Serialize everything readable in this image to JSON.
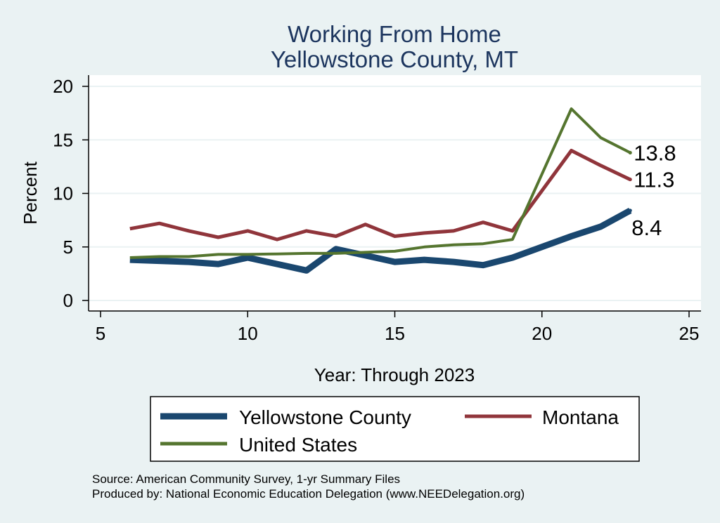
{
  "chart_data": {
    "type": "line",
    "title": [
      "Working From Home",
      "Yellowstone County, MT"
    ],
    "xlabel": "Year: Through 2023",
    "ylabel": "Percent",
    "xlim": [
      5,
      25
    ],
    "ylim": [
      0,
      20
    ],
    "xticks": [
      5,
      10,
      15,
      20,
      25
    ],
    "yticks": [
      0,
      5,
      10,
      15,
      20
    ],
    "grid": true,
    "legend_position": "bottom",
    "series": [
      {
        "name": "Yellowstone County",
        "color": "#1a476f",
        "x": [
          6,
          7,
          8,
          9,
          10,
          11,
          12,
          13,
          14,
          15,
          16,
          17,
          18,
          19,
          21,
          22,
          23
        ],
        "values": [
          3.8,
          3.7,
          3.6,
          3.4,
          4.0,
          3.4,
          2.8,
          4.8,
          4.2,
          3.6,
          3.8,
          3.6,
          3.3,
          4.0,
          6.0,
          6.9,
          8.4
        ],
        "end_label": "8.4"
      },
      {
        "name": "Montana",
        "color": "#90353b",
        "x": [
          6,
          7,
          8,
          9,
          10,
          11,
          12,
          13,
          14,
          15,
          16,
          17,
          18,
          19,
          21,
          22,
          23
        ],
        "values": [
          6.7,
          7.2,
          6.5,
          5.9,
          6.5,
          5.7,
          6.5,
          6.0,
          7.1,
          6.0,
          6.3,
          6.5,
          7.3,
          6.5,
          14.0,
          12.6,
          11.3
        ],
        "end_label": "11.3"
      },
      {
        "name": "United States",
        "color": "#55752f",
        "x": [
          6,
          7,
          8,
          9,
          10,
          11,
          12,
          13,
          14,
          15,
          16,
          17,
          18,
          19,
          21,
          22,
          23
        ],
        "values": [
          4.0,
          4.1,
          4.1,
          4.3,
          4.3,
          4.35,
          4.4,
          4.4,
          4.5,
          4.6,
          5.0,
          5.2,
          5.3,
          5.7,
          17.9,
          15.2,
          13.8
        ],
        "end_label": "13.8"
      }
    ]
  },
  "source_line1": "Source: American Community Survey, 1-yr Summary Files",
  "source_line2": "Produced by: National Economic Education Delegation (www.NEEDelegation.org)"
}
